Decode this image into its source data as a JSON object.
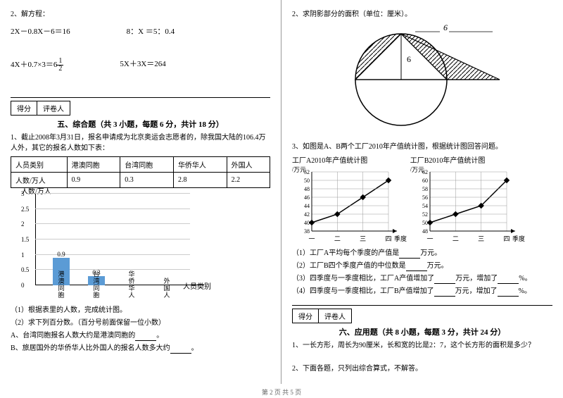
{
  "left": {
    "q2_title": "2、解方程：",
    "equations": {
      "r1c1": "2X－0.8X－6＝16",
      "r1c2": "8：X ＝5：0.4",
      "r2c1_prefix": "4X＋0.7×3＝6",
      "r2c1_frac_n": "1",
      "r2c1_frac_d": "2",
      "r2c2": "5X＋3X＝264"
    },
    "score_label": "得分",
    "grader_label": "评卷人",
    "section5_title": "五、综合题（共 3 小题，每题 6 分，共计 18 分）",
    "q1_intro": "1、截止2008年3月31日，报名申请成为北京奥运会志愿者的，除我国大陆的106.4万人外，其它的报名人数如下表：",
    "table": {
      "h1": "人员类别",
      "h2": "港澳同胞",
      "h3": "台湾同胞",
      "h4": "华侨华人",
      "h5": "外国人",
      "r1": "人数/万人",
      "v1": "0.9",
      "v2": "0.3",
      "v3": "2.8",
      "v4": "2.2"
    },
    "chart1": {
      "y_title": "人数/万人",
      "x_title": "人员类别",
      "y_ticks": [
        "0",
        "0.5",
        "1",
        "1.5",
        "2",
        "2.5",
        "3"
      ],
      "bars": [
        {
          "label": "0.9",
          "height_pct": 30,
          "x": 45,
          "xlabel": "港澳同胞"
        },
        {
          "label": "0.3",
          "height_pct": 10,
          "x": 95,
          "xlabel": "台湾同胞"
        },
        {
          "label": "",
          "height_pct": 0,
          "x": 145,
          "xlabel": "华侨华人"
        },
        {
          "label": "",
          "height_pct": 0,
          "x": 195,
          "xlabel": "外国人"
        }
      ],
      "bar_color": "#5b9bd5",
      "grid_color": "#cccccc"
    },
    "sub1": "（1）根据表里的人数，完成统计图。",
    "sub2": "（2）求下列百分数。（百分号前面保留一位小数）",
    "subA": "A、台湾同胞报名人数大约是港澳同胞的",
    "subB": "B、旅居国外的华侨华人比外国人的报名人数多大约",
    "period": "。"
  },
  "right": {
    "q2_title": "2、求阴影部分的面积（单位：厘米）。",
    "circle": {
      "r_label": "6",
      "top_label": "6",
      "stroke": "#000",
      "hatch": "#000"
    },
    "q3_title": "3、如图是A、B两个工厂2010年产值统计图，根据统计图回答问题。",
    "chartA_title": "工厂A2010年产值统计图",
    "chartB_title": "工厂B2010年产值统计图",
    "chartA": {
      "y_label": "产值/万元",
      "x_label": "季度",
      "y_ticks": [
        38,
        40,
        42,
        44,
        46,
        48,
        50,
        52
      ],
      "x_ticks": [
        "一",
        "二",
        "三",
        "四"
      ],
      "points": [
        40,
        42,
        46,
        50
      ],
      "color": "#000",
      "marker": "diamond",
      "grid": "#999"
    },
    "chartB": {
      "y_label": "产值/万元",
      "x_label": "季度",
      "y_ticks": [
        48,
        50,
        52,
        54,
        56,
        58,
        60,
        62
      ],
      "x_ticks": [
        "一",
        "二",
        "三",
        "四"
      ],
      "points": [
        50,
        52,
        54,
        60
      ],
      "color": "#000",
      "marker": "diamond",
      "grid": "#999"
    },
    "sub1": "（1）工厂A平均每个季度的产值是",
    "sub1_unit": "万元。",
    "sub2": "（2）工厂B四个季度产值的中位数是",
    "sub2_unit": "万元。",
    "sub3": "（3）四季度与一季度相比，工厂A产值增加了",
    "sub3_mid": "万元，增加了",
    "sub3_end": "%。",
    "sub4": "（4）四季度与一季度相比，工厂B产值增加了",
    "sub4_mid": "万元，增加了",
    "sub4_end": "%。",
    "section6_title": "六、应用题（共 8 小题，每题 3 分，共计 24 分）",
    "q6_1": "1、一长方形，周长为90厘米，长和宽的比是2：7，这个长方形的面积是多少？",
    "q6_2": "2、下面各题，只列出综合算式，不解答。"
  },
  "footer": "第 2 页 共 5 页"
}
